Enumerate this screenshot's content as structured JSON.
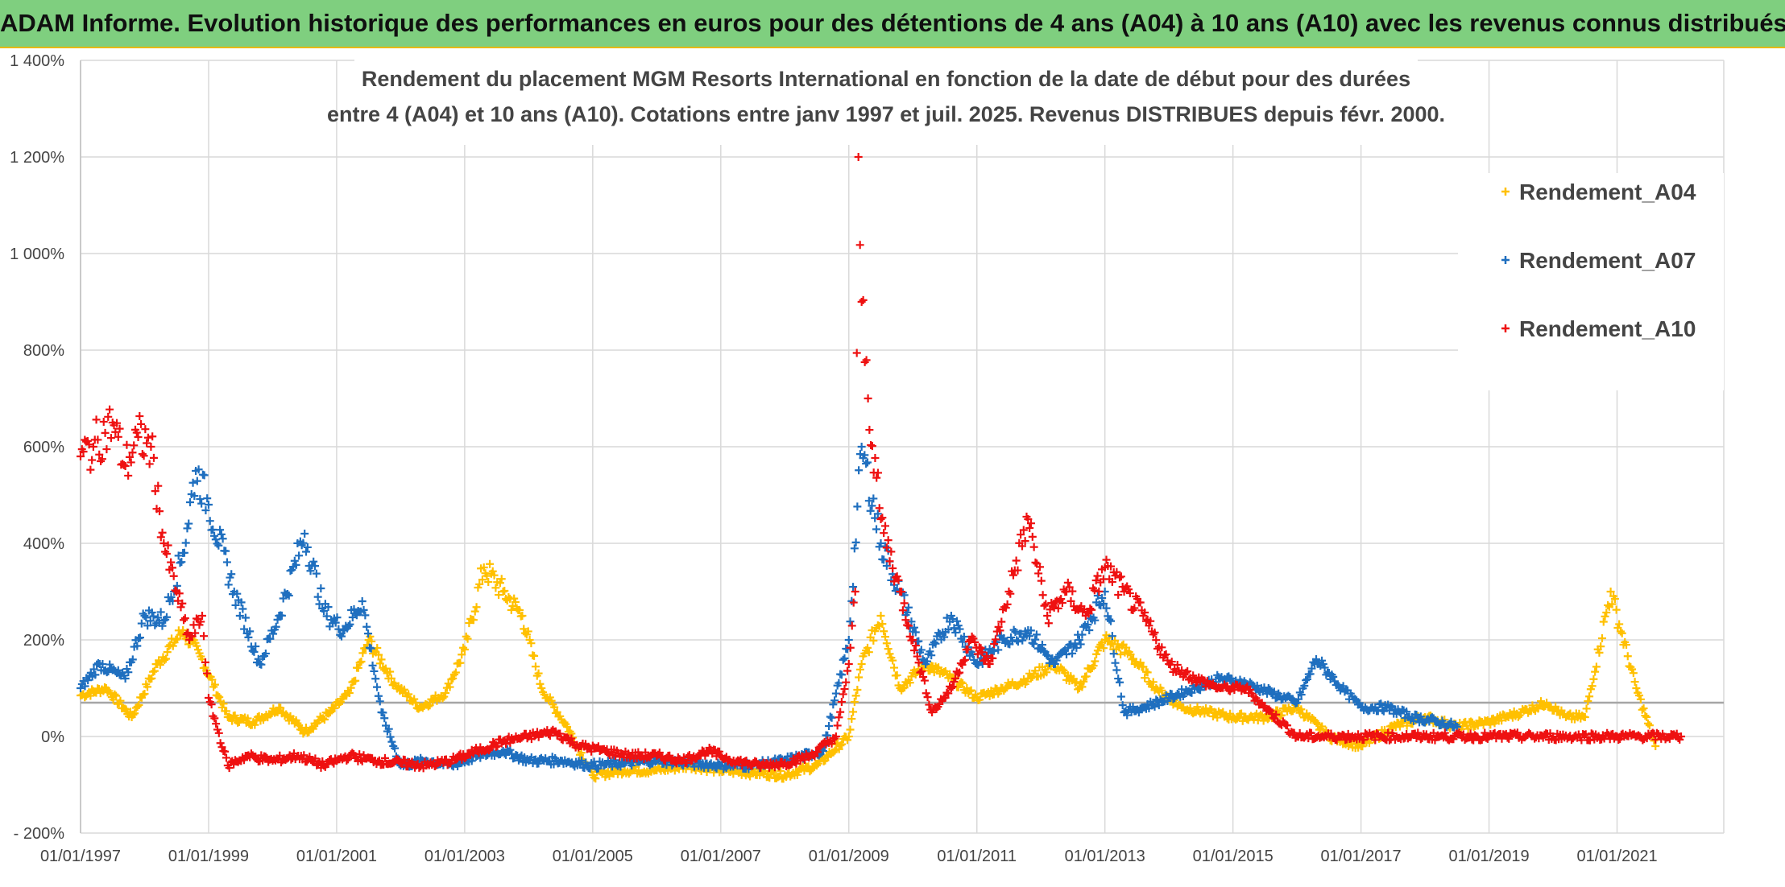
{
  "header": {
    "title": "ADAM Informe. Evolution historique des performances en euros pour des détentions de 4 ans (A04) à 10 ans (A10) avec les revenus connus distribués"
  },
  "chart_data": {
    "type": "scatter",
    "title_lines": [
      "Rendement du placement MGM Resorts International en fonction de la date de début pour des durées",
      "entre 4 (A04) et 10 ans (A10). Cotations entre janv 1997 et juil. 2025. Revenus DISTRIBUES depuis févr. 2000."
    ],
    "xlabel": "",
    "ylabel": "",
    "x_ticks": [
      "01/01/1997",
      "01/01/1999",
      "01/01/2001",
      "01/01/2003",
      "01/01/2005",
      "01/01/2007",
      "01/01/2009",
      "01/01/2011",
      "01/01/2013",
      "01/01/2015",
      "01/01/2017",
      "01/01/2019",
      "01/01/2021"
    ],
    "y_ticks": [
      "- 200%",
      "0%",
      "200%",
      "400%",
      "600%",
      "800%",
      "1 000%",
      "1 200%",
      "1 400%"
    ],
    "ylim": [
      -200,
      1400
    ],
    "xlim": [
      "01/01/1997",
      "01/09/2022"
    ],
    "grid": true,
    "legend_position": "top-right",
    "reference_line_y": 70,
    "series": [
      {
        "name": "Rendement_A04",
        "color": "#ffc000",
        "x": [
          "1997.0",
          "1997.4",
          "1997.8",
          "1998.2",
          "1998.6",
          "1998.9",
          "1999.3",
          "1999.7",
          "2000.1",
          "2000.5",
          "2000.9",
          "2001.2",
          "2001.5",
          "2001.9",
          "2002.3",
          "2002.7",
          "2003.0",
          "2003.3",
          "2003.6",
          "2003.9",
          "2004.2",
          "2004.6",
          "2005.0",
          "2005.5",
          "2006.0",
          "2006.5",
          "2007.0",
          "2007.5",
          "2008.0",
          "2008.5",
          "2009.0",
          "2009.2",
          "2009.5",
          "2009.8",
          "2010.2",
          "2010.6",
          "2011.0",
          "2011.4",
          "2011.8",
          "2012.2",
          "2012.6",
          "2013.0",
          "2013.4",
          "2013.8",
          "2014.2",
          "2014.6",
          "2015.0",
          "2015.5",
          "2016.0",
          "2016.5",
          "2017.0",
          "2017.5",
          "2018.0",
          "2018.5",
          "2019.0",
          "2019.5",
          "2019.9",
          "2020.2",
          "2020.5",
          "2020.9",
          "2021.3",
          "2021.6"
        ],
        "y": [
          85,
          100,
          40,
          150,
          220,
          160,
          40,
          30,
          60,
          10,
          50,
          90,
          200,
          110,
          60,
          90,
          180,
          350,
          300,
          250,
          100,
          20,
          -80,
          -70,
          -70,
          -60,
          -70,
          -75,
          -80,
          -60,
          0,
          150,
          250,
          100,
          150,
          120,
          80,
          100,
          120,
          150,
          100,
          200,
          170,
          100,
          60,
          50,
          40,
          40,
          60,
          0,
          -20,
          20,
          40,
          20,
          30,
          50,
          70,
          40,
          40,
          300,
          100,
          -20
        ]
      },
      {
        "name": "Rendement_A07",
        "color": "#1f6fbf",
        "x": [
          "1997.0",
          "1997.3",
          "1997.7",
          "1998.0",
          "1998.3",
          "1998.6",
          "1998.8",
          "1999.0",
          "1999.4",
          "1999.8",
          "2000.1",
          "2000.5",
          "2000.8",
          "2001.1",
          "2001.4",
          "2001.7",
          "2002.0",
          "2002.4",
          "2002.8",
          "2003.2",
          "2003.6",
          "2004.0",
          "2004.5",
          "2005.0",
          "2005.5",
          "2006.0",
          "2006.5",
          "2007.0",
          "2007.5",
          "2008.0",
          "2008.6",
          "2009.0",
          "2009.2",
          "2009.5",
          "2009.8",
          "2010.2",
          "2010.6",
          "2011.0",
          "2011.4",
          "2011.8",
          "2012.2",
          "2012.6",
          "2013.0",
          "2013.3",
          "2013.6",
          "2014.0",
          "2014.4",
          "2014.8",
          "2015.2",
          "2015.6",
          "2016.0",
          "2016.3",
          "2016.7",
          "2017.0",
          "2017.4",
          "2017.8",
          "2018.2",
          "2018.5"
        ],
        "y": [
          100,
          150,
          120,
          250,
          240,
          380,
          550,
          480,
          300,
          150,
          250,
          420,
          260,
          220,
          280,
          50,
          -60,
          -50,
          -60,
          -40,
          -30,
          -50,
          -50,
          -60,
          -55,
          -50,
          -55,
          -60,
          -60,
          -50,
          -30,
          200,
          600,
          400,
          300,
          150,
          250,
          150,
          200,
          220,
          150,
          200,
          300,
          50,
          60,
          80,
          100,
          120,
          110,
          90,
          70,
          160,
          100,
          60,
          60,
          40,
          30,
          20
        ]
      },
      {
        "name": "Rendement_A10",
        "color": "#ee1111",
        "x": [
          "1997.0",
          "1997.2",
          "1997.5",
          "1997.7",
          "1997.9",
          "1998.1",
          "1998.3",
          "1998.5",
          "1998.7",
          "1998.9",
          "1999.0",
          "1999.3",
          "1999.6",
          "2000.0",
          "2000.4",
          "2000.8",
          "2001.2",
          "2001.6",
          "2002.0",
          "2002.4",
          "2002.8",
          "2003.2",
          "2003.6",
          "2004.0",
          "2004.4",
          "2004.8",
          "2005.2",
          "2005.6",
          "2006.0",
          "2006.4",
          "2006.8",
          "2007.2",
          "2007.6",
          "2008.0",
          "2008.4",
          "2008.8",
          "2009.0",
          "2009.1",
          "2009.15",
          "2009.2",
          "2009.3",
          "2009.5",
          "2009.8",
          "2010.0",
          "2010.3",
          "2010.6",
          "2010.9",
          "2011.2",
          "2011.5",
          "2011.8",
          "2012.1",
          "2012.4",
          "2012.7",
          "2013.0",
          "2013.3",
          "2013.6",
          "2014.0",
          "2014.4",
          "2014.8",
          "2015.2",
          "2015.5",
          "2016.0",
          "2017.0",
          "2018.0",
          "2019.0",
          "2020.0",
          "2021.0",
          "2022.0"
        ],
        "y": [
          580,
          600,
          650,
          560,
          620,
          600,
          400,
          300,
          200,
          250,
          80,
          -60,
          -40,
          -50,
          -40,
          -60,
          -40,
          -50,
          -55,
          -60,
          -50,
          -30,
          -10,
          0,
          10,
          -20,
          -30,
          -40,
          -40,
          -50,
          -30,
          -50,
          -60,
          -55,
          -40,
          0,
          150,
          300,
          1200,
          900,
          700,
          450,
          300,
          200,
          50,
          100,
          200,
          150,
          300,
          450,
          250,
          300,
          250,
          350,
          300,
          250,
          150,
          120,
          100,
          100,
          60,
          0,
          0,
          0,
          0,
          0,
          0,
          0
        ]
      }
    ]
  }
}
